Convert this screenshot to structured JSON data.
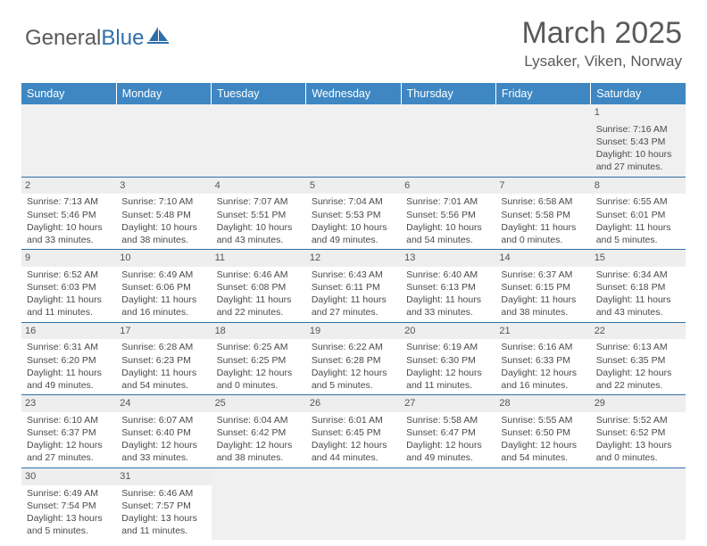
{
  "logo": {
    "general": "General",
    "blue": "Blue"
  },
  "title": "March 2025",
  "location": "Lysaker, Viken, Norway",
  "colors": {
    "header_bg": "#3e87c3",
    "header_text": "#ffffff",
    "border": "#2f6fa8",
    "daynum_bg": "#eeeeee",
    "text": "#4a4a4a"
  },
  "weekdays": [
    "Sunday",
    "Monday",
    "Tuesday",
    "Wednesday",
    "Thursday",
    "Friday",
    "Saturday"
  ],
  "weeks": [
    [
      null,
      null,
      null,
      null,
      null,
      null,
      {
        "n": "1",
        "sr": "Sunrise: 7:16 AM",
        "ss": "Sunset: 5:43 PM",
        "dl": "Daylight: 10 hours and 27 minutes."
      }
    ],
    [
      {
        "n": "2",
        "sr": "Sunrise: 7:13 AM",
        "ss": "Sunset: 5:46 PM",
        "dl": "Daylight: 10 hours and 33 minutes."
      },
      {
        "n": "3",
        "sr": "Sunrise: 7:10 AM",
        "ss": "Sunset: 5:48 PM",
        "dl": "Daylight: 10 hours and 38 minutes."
      },
      {
        "n": "4",
        "sr": "Sunrise: 7:07 AM",
        "ss": "Sunset: 5:51 PM",
        "dl": "Daylight: 10 hours and 43 minutes."
      },
      {
        "n": "5",
        "sr": "Sunrise: 7:04 AM",
        "ss": "Sunset: 5:53 PM",
        "dl": "Daylight: 10 hours and 49 minutes."
      },
      {
        "n": "6",
        "sr": "Sunrise: 7:01 AM",
        "ss": "Sunset: 5:56 PM",
        "dl": "Daylight: 10 hours and 54 minutes."
      },
      {
        "n": "7",
        "sr": "Sunrise: 6:58 AM",
        "ss": "Sunset: 5:58 PM",
        "dl": "Daylight: 11 hours and 0 minutes."
      },
      {
        "n": "8",
        "sr": "Sunrise: 6:55 AM",
        "ss": "Sunset: 6:01 PM",
        "dl": "Daylight: 11 hours and 5 minutes."
      }
    ],
    [
      {
        "n": "9",
        "sr": "Sunrise: 6:52 AM",
        "ss": "Sunset: 6:03 PM",
        "dl": "Daylight: 11 hours and 11 minutes."
      },
      {
        "n": "10",
        "sr": "Sunrise: 6:49 AM",
        "ss": "Sunset: 6:06 PM",
        "dl": "Daylight: 11 hours and 16 minutes."
      },
      {
        "n": "11",
        "sr": "Sunrise: 6:46 AM",
        "ss": "Sunset: 6:08 PM",
        "dl": "Daylight: 11 hours and 22 minutes."
      },
      {
        "n": "12",
        "sr": "Sunrise: 6:43 AM",
        "ss": "Sunset: 6:11 PM",
        "dl": "Daylight: 11 hours and 27 minutes."
      },
      {
        "n": "13",
        "sr": "Sunrise: 6:40 AM",
        "ss": "Sunset: 6:13 PM",
        "dl": "Daylight: 11 hours and 33 minutes."
      },
      {
        "n": "14",
        "sr": "Sunrise: 6:37 AM",
        "ss": "Sunset: 6:15 PM",
        "dl": "Daylight: 11 hours and 38 minutes."
      },
      {
        "n": "15",
        "sr": "Sunrise: 6:34 AM",
        "ss": "Sunset: 6:18 PM",
        "dl": "Daylight: 11 hours and 43 minutes."
      }
    ],
    [
      {
        "n": "16",
        "sr": "Sunrise: 6:31 AM",
        "ss": "Sunset: 6:20 PM",
        "dl": "Daylight: 11 hours and 49 minutes."
      },
      {
        "n": "17",
        "sr": "Sunrise: 6:28 AM",
        "ss": "Sunset: 6:23 PM",
        "dl": "Daylight: 11 hours and 54 minutes."
      },
      {
        "n": "18",
        "sr": "Sunrise: 6:25 AM",
        "ss": "Sunset: 6:25 PM",
        "dl": "Daylight: 12 hours and 0 minutes."
      },
      {
        "n": "19",
        "sr": "Sunrise: 6:22 AM",
        "ss": "Sunset: 6:28 PM",
        "dl": "Daylight: 12 hours and 5 minutes."
      },
      {
        "n": "20",
        "sr": "Sunrise: 6:19 AM",
        "ss": "Sunset: 6:30 PM",
        "dl": "Daylight: 12 hours and 11 minutes."
      },
      {
        "n": "21",
        "sr": "Sunrise: 6:16 AM",
        "ss": "Sunset: 6:33 PM",
        "dl": "Daylight: 12 hours and 16 minutes."
      },
      {
        "n": "22",
        "sr": "Sunrise: 6:13 AM",
        "ss": "Sunset: 6:35 PM",
        "dl": "Daylight: 12 hours and 22 minutes."
      }
    ],
    [
      {
        "n": "23",
        "sr": "Sunrise: 6:10 AM",
        "ss": "Sunset: 6:37 PM",
        "dl": "Daylight: 12 hours and 27 minutes."
      },
      {
        "n": "24",
        "sr": "Sunrise: 6:07 AM",
        "ss": "Sunset: 6:40 PM",
        "dl": "Daylight: 12 hours and 33 minutes."
      },
      {
        "n": "25",
        "sr": "Sunrise: 6:04 AM",
        "ss": "Sunset: 6:42 PM",
        "dl": "Daylight: 12 hours and 38 minutes."
      },
      {
        "n": "26",
        "sr": "Sunrise: 6:01 AM",
        "ss": "Sunset: 6:45 PM",
        "dl": "Daylight: 12 hours and 44 minutes."
      },
      {
        "n": "27",
        "sr": "Sunrise: 5:58 AM",
        "ss": "Sunset: 6:47 PM",
        "dl": "Daylight: 12 hours and 49 minutes."
      },
      {
        "n": "28",
        "sr": "Sunrise: 5:55 AM",
        "ss": "Sunset: 6:50 PM",
        "dl": "Daylight: 12 hours and 54 minutes."
      },
      {
        "n": "29",
        "sr": "Sunrise: 5:52 AM",
        "ss": "Sunset: 6:52 PM",
        "dl": "Daylight: 13 hours and 0 minutes."
      }
    ],
    [
      {
        "n": "30",
        "sr": "Sunrise: 6:49 AM",
        "ss": "Sunset: 7:54 PM",
        "dl": "Daylight: 13 hours and 5 minutes."
      },
      {
        "n": "31",
        "sr": "Sunrise: 6:46 AM",
        "ss": "Sunset: 7:57 PM",
        "dl": "Daylight: 13 hours and 11 minutes."
      },
      null,
      null,
      null,
      null,
      null
    ]
  ]
}
